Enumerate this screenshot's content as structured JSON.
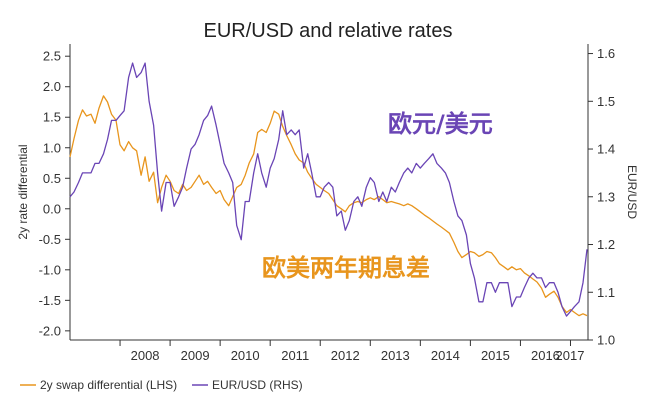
{
  "chart_data": {
    "type": "line",
    "title": "EUR/USD and relative rates",
    "ylabel_left": "2y rate differential",
    "ylabel_right": "EUR/USD",
    "ylim_left": [
      -2.15,
      2.7
    ],
    "ylim_right": [
      1.0,
      1.62
    ],
    "left_ticks": [
      "2.5",
      "2.0",
      "1.5",
      "1.0",
      "0.5",
      "0.0",
      "-0.5",
      "-1.0",
      "-1.5",
      "-2.0"
    ],
    "right_ticks": [
      "1.6",
      "1.5",
      "1.4",
      "1.3",
      "1.2",
      "1.1",
      "1.0"
    ],
    "x_ticks": [
      "2008",
      "2009",
      "2010",
      "2011",
      "2012",
      "2013",
      "2014",
      "2015",
      "2016",
      "2017"
    ],
    "xlim": [
      2007.0,
      2017.35
    ],
    "grid": false,
    "legend_position": "bottom-left",
    "annotations": {
      "eurusd": "欧元/美元",
      "spread": "欧美两年期息差"
    },
    "series": [
      {
        "name": "2y swap differential (LHS)",
        "axis": "left",
        "color": "#E8951D",
        "points": [
          [
            2007.0,
            0.85
          ],
          [
            2007.08,
            1.15
          ],
          [
            2007.17,
            1.45
          ],
          [
            2007.25,
            1.62
          ],
          [
            2007.33,
            1.52
          ],
          [
            2007.42,
            1.55
          ],
          [
            2007.5,
            1.4
          ],
          [
            2007.58,
            1.65
          ],
          [
            2007.67,
            1.85
          ],
          [
            2007.75,
            1.75
          ],
          [
            2007.83,
            1.55
          ],
          [
            2007.92,
            1.45
          ],
          [
            2008.0,
            1.05
          ],
          [
            2008.08,
            0.95
          ],
          [
            2008.17,
            1.1
          ],
          [
            2008.25,
            1.0
          ],
          [
            2008.33,
            0.95
          ],
          [
            2008.42,
            0.55
          ],
          [
            2008.5,
            0.85
          ],
          [
            2008.58,
            0.45
          ],
          [
            2008.67,
            0.6
          ],
          [
            2008.75,
            0.1
          ],
          [
            2008.83,
            0.35
          ],
          [
            2008.92,
            0.55
          ],
          [
            2009.0,
            0.45
          ],
          [
            2009.08,
            0.3
          ],
          [
            2009.17,
            0.25
          ],
          [
            2009.25,
            0.4
          ],
          [
            2009.33,
            0.3
          ],
          [
            2009.42,
            0.35
          ],
          [
            2009.5,
            0.45
          ],
          [
            2009.58,
            0.55
          ],
          [
            2009.67,
            0.4
          ],
          [
            2009.75,
            0.45
          ],
          [
            2009.83,
            0.35
          ],
          [
            2009.92,
            0.25
          ],
          [
            2010.0,
            0.3
          ],
          [
            2010.08,
            0.15
          ],
          [
            2010.17,
            0.05
          ],
          [
            2010.25,
            0.2
          ],
          [
            2010.33,
            0.35
          ],
          [
            2010.42,
            0.4
          ],
          [
            2010.5,
            0.55
          ],
          [
            2010.58,
            0.75
          ],
          [
            2010.67,
            0.9
          ],
          [
            2010.75,
            1.25
          ],
          [
            2010.83,
            1.3
          ],
          [
            2010.92,
            1.25
          ],
          [
            2011.0,
            1.4
          ],
          [
            2011.08,
            1.6
          ],
          [
            2011.17,
            1.55
          ],
          [
            2011.25,
            1.35
          ],
          [
            2011.33,
            1.2
          ],
          [
            2011.42,
            1.05
          ],
          [
            2011.5,
            0.9
          ],
          [
            2011.58,
            0.8
          ],
          [
            2011.67,
            0.75
          ],
          [
            2011.75,
            0.6
          ],
          [
            2011.83,
            0.5
          ],
          [
            2011.92,
            0.4
          ],
          [
            2012.0,
            0.35
          ],
          [
            2012.08,
            0.3
          ],
          [
            2012.17,
            0.25
          ],
          [
            2012.25,
            0.15
          ],
          [
            2012.33,
            0.05
          ],
          [
            2012.42,
            0.0
          ],
          [
            2012.5,
            -0.05
          ],
          [
            2012.58,
            0.05
          ],
          [
            2012.67,
            0.1
          ],
          [
            2012.75,
            0.12
          ],
          [
            2012.83,
            0.1
          ],
          [
            2012.92,
            0.15
          ],
          [
            2013.0,
            0.18
          ],
          [
            2013.08,
            0.15
          ],
          [
            2013.17,
            0.2
          ],
          [
            2013.25,
            0.15
          ],
          [
            2013.33,
            0.1
          ],
          [
            2013.42,
            0.12
          ],
          [
            2013.5,
            0.1
          ],
          [
            2013.58,
            0.08
          ],
          [
            2013.67,
            0.05
          ],
          [
            2013.75,
            0.08
          ],
          [
            2013.83,
            0.05
          ],
          [
            2013.92,
            0.0
          ],
          [
            2014.0,
            -0.05
          ],
          [
            2014.08,
            -0.1
          ],
          [
            2014.17,
            -0.15
          ],
          [
            2014.25,
            -0.2
          ],
          [
            2014.33,
            -0.25
          ],
          [
            2014.42,
            -0.3
          ],
          [
            2014.5,
            -0.35
          ],
          [
            2014.58,
            -0.4
          ],
          [
            2014.67,
            -0.55
          ],
          [
            2014.75,
            -0.7
          ],
          [
            2014.83,
            -0.8
          ],
          [
            2014.92,
            -0.75
          ],
          [
            2015.0,
            -0.7
          ],
          [
            2015.08,
            -0.72
          ],
          [
            2015.17,
            -0.78
          ],
          [
            2015.25,
            -0.75
          ],
          [
            2015.33,
            -0.7
          ],
          [
            2015.42,
            -0.72
          ],
          [
            2015.5,
            -0.8
          ],
          [
            2015.58,
            -0.9
          ],
          [
            2015.67,
            -0.95
          ],
          [
            2015.75,
            -1.0
          ],
          [
            2015.83,
            -0.95
          ],
          [
            2015.92,
            -1.0
          ],
          [
            2016.0,
            -0.98
          ],
          [
            2016.08,
            -1.05
          ],
          [
            2016.17,
            -1.1
          ],
          [
            2016.25,
            -1.15
          ],
          [
            2016.33,
            -1.2
          ],
          [
            2016.42,
            -1.3
          ],
          [
            2016.5,
            -1.45
          ],
          [
            2016.58,
            -1.4
          ],
          [
            2016.67,
            -1.35
          ],
          [
            2016.75,
            -1.45
          ],
          [
            2016.83,
            -1.6
          ],
          [
            2016.92,
            -1.7
          ],
          [
            2017.0,
            -1.65
          ],
          [
            2017.08,
            -1.7
          ],
          [
            2017.17,
            -1.75
          ],
          [
            2017.25,
            -1.72
          ],
          [
            2017.33,
            -1.75
          ]
        ]
      },
      {
        "name": "EUR/USD (RHS)",
        "axis": "right",
        "color": "#6A45B5",
        "points": [
          [
            2007.0,
            1.3
          ],
          [
            2007.08,
            1.31
          ],
          [
            2007.17,
            1.33
          ],
          [
            2007.25,
            1.35
          ],
          [
            2007.33,
            1.35
          ],
          [
            2007.42,
            1.35
          ],
          [
            2007.5,
            1.37
          ],
          [
            2007.58,
            1.37
          ],
          [
            2007.67,
            1.39
          ],
          [
            2007.75,
            1.42
          ],
          [
            2007.83,
            1.46
          ],
          [
            2007.92,
            1.46
          ],
          [
            2008.0,
            1.47
          ],
          [
            2008.08,
            1.48
          ],
          [
            2008.17,
            1.55
          ],
          [
            2008.25,
            1.58
          ],
          [
            2008.33,
            1.55
          ],
          [
            2008.42,
            1.56
          ],
          [
            2008.5,
            1.58
          ],
          [
            2008.58,
            1.5
          ],
          [
            2008.67,
            1.45
          ],
          [
            2008.75,
            1.35
          ],
          [
            2008.83,
            1.27
          ],
          [
            2008.92,
            1.33
          ],
          [
            2009.0,
            1.33
          ],
          [
            2009.08,
            1.28
          ],
          [
            2009.17,
            1.3
          ],
          [
            2009.25,
            1.32
          ],
          [
            2009.33,
            1.36
          ],
          [
            2009.42,
            1.4
          ],
          [
            2009.5,
            1.41
          ],
          [
            2009.58,
            1.43
          ],
          [
            2009.67,
            1.46
          ],
          [
            2009.75,
            1.47
          ],
          [
            2009.83,
            1.49
          ],
          [
            2009.92,
            1.45
          ],
          [
            2010.0,
            1.41
          ],
          [
            2010.08,
            1.37
          ],
          [
            2010.17,
            1.35
          ],
          [
            2010.25,
            1.33
          ],
          [
            2010.33,
            1.24
          ],
          [
            2010.42,
            1.21
          ],
          [
            2010.5,
            1.29
          ],
          [
            2010.58,
            1.29
          ],
          [
            2010.67,
            1.35
          ],
          [
            2010.75,
            1.39
          ],
          [
            2010.83,
            1.35
          ],
          [
            2010.92,
            1.32
          ],
          [
            2011.0,
            1.36
          ],
          [
            2011.08,
            1.38
          ],
          [
            2011.17,
            1.42
          ],
          [
            2011.25,
            1.48
          ],
          [
            2011.33,
            1.43
          ],
          [
            2011.42,
            1.44
          ],
          [
            2011.5,
            1.43
          ],
          [
            2011.58,
            1.44
          ],
          [
            2011.67,
            1.36
          ],
          [
            2011.75,
            1.39
          ],
          [
            2011.83,
            1.35
          ],
          [
            2011.92,
            1.3
          ],
          [
            2012.0,
            1.3
          ],
          [
            2012.08,
            1.32
          ],
          [
            2012.17,
            1.33
          ],
          [
            2012.25,
            1.32
          ],
          [
            2012.33,
            1.26
          ],
          [
            2012.42,
            1.27
          ],
          [
            2012.5,
            1.23
          ],
          [
            2012.58,
            1.25
          ],
          [
            2012.67,
            1.29
          ],
          [
            2012.75,
            1.3
          ],
          [
            2012.83,
            1.28
          ],
          [
            2012.92,
            1.32
          ],
          [
            2013.0,
            1.34
          ],
          [
            2013.08,
            1.33
          ],
          [
            2013.17,
            1.29
          ],
          [
            2013.25,
            1.31
          ],
          [
            2013.33,
            1.29
          ],
          [
            2013.42,
            1.32
          ],
          [
            2013.5,
            1.31
          ],
          [
            2013.58,
            1.33
          ],
          [
            2013.67,
            1.35
          ],
          [
            2013.75,
            1.36
          ],
          [
            2013.83,
            1.35
          ],
          [
            2013.92,
            1.37
          ],
          [
            2014.0,
            1.36
          ],
          [
            2014.08,
            1.37
          ],
          [
            2014.17,
            1.38
          ],
          [
            2014.25,
            1.39
          ],
          [
            2014.33,
            1.37
          ],
          [
            2014.42,
            1.36
          ],
          [
            2014.5,
            1.35
          ],
          [
            2014.58,
            1.33
          ],
          [
            2014.67,
            1.29
          ],
          [
            2014.75,
            1.26
          ],
          [
            2014.83,
            1.25
          ],
          [
            2014.92,
            1.22
          ],
          [
            2015.0,
            1.16
          ],
          [
            2015.08,
            1.13
          ],
          [
            2015.17,
            1.08
          ],
          [
            2015.25,
            1.08
          ],
          [
            2015.33,
            1.12
          ],
          [
            2015.42,
            1.12
          ],
          [
            2015.5,
            1.1
          ],
          [
            2015.58,
            1.12
          ],
          [
            2015.67,
            1.12
          ],
          [
            2015.75,
            1.12
          ],
          [
            2015.83,
            1.07
          ],
          [
            2015.92,
            1.09
          ],
          [
            2016.0,
            1.09
          ],
          [
            2016.08,
            1.11
          ],
          [
            2016.17,
            1.13
          ],
          [
            2016.25,
            1.14
          ],
          [
            2016.33,
            1.13
          ],
          [
            2016.42,
            1.13
          ],
          [
            2016.5,
            1.11
          ],
          [
            2016.58,
            1.12
          ],
          [
            2016.67,
            1.12
          ],
          [
            2016.75,
            1.1
          ],
          [
            2016.83,
            1.07
          ],
          [
            2016.92,
            1.05
          ],
          [
            2017.0,
            1.06
          ],
          [
            2017.08,
            1.07
          ],
          [
            2017.17,
            1.08
          ],
          [
            2017.25,
            1.12
          ],
          [
            2017.33,
            1.19
          ]
        ]
      }
    ]
  }
}
